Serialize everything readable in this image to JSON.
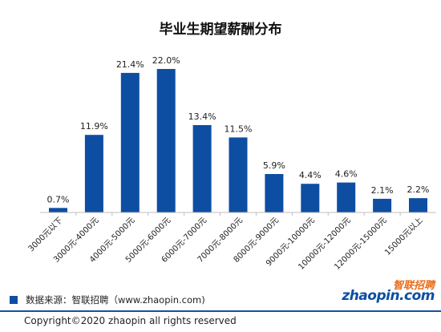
{
  "chart_data": {
    "type": "bar",
    "title": "毕业生期望薪酬分布",
    "categories": [
      "3000元以下",
      "3000元-4000元",
      "4000元-5000元",
      "5000元-6000元",
      "6000元-7000元",
      "7000元-8000元",
      "8000元-9000元",
      "9000元-10000元",
      "10000元-12000元",
      "12000元-15000元",
      "15000元以上"
    ],
    "values": [
      0.7,
      11.9,
      21.4,
      22.0,
      13.4,
      11.5,
      5.9,
      4.4,
      4.6,
      2.1,
      2.2
    ],
    "value_labels": [
      "0.7%",
      "11.9%",
      "21.4%",
      "22.0%",
      "13.4%",
      "11.5%",
      "5.9%",
      "4.4%",
      "4.6%",
      "2.1%",
      "2.2%"
    ],
    "ylim": [
      0,
      22.0
    ],
    "bar_color": "#0d4ea3",
    "grid": false,
    "legend": "none"
  },
  "footer": {
    "source": "数据来源：智联招聘（www.zhaopin.com)",
    "copyright": "Copyright©2020 zhaopin all rights reserved"
  },
  "logo": {
    "cn": "智联招聘",
    "en": "zhaopin.com"
  },
  "colors": {
    "brand_blue": "#0d4ea3",
    "brand_orange": "#e86d1a"
  }
}
